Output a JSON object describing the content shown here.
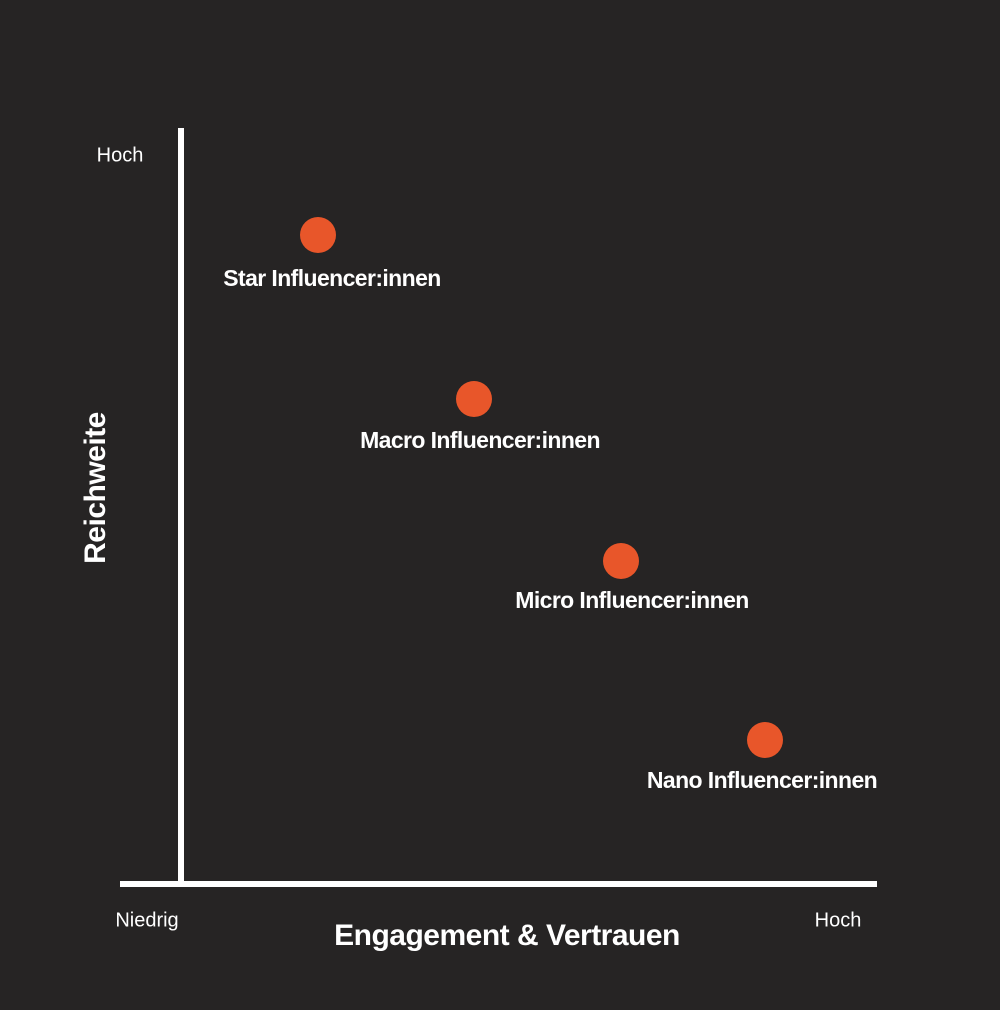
{
  "y_axis": {
    "title": "Reichweite",
    "high_label": "Hoch"
  },
  "x_axis": {
    "title": "Engagement & Vertrauen",
    "low_label": "Niedrig",
    "high_label": "Hoch"
  },
  "nodes": [
    {
      "label": "Star Influencer:innen"
    },
    {
      "label": "Macro Influencer:innen"
    },
    {
      "label": "Micro Influencer:innen"
    },
    {
      "label": "Nano Influencer:innen"
    }
  ]
}
